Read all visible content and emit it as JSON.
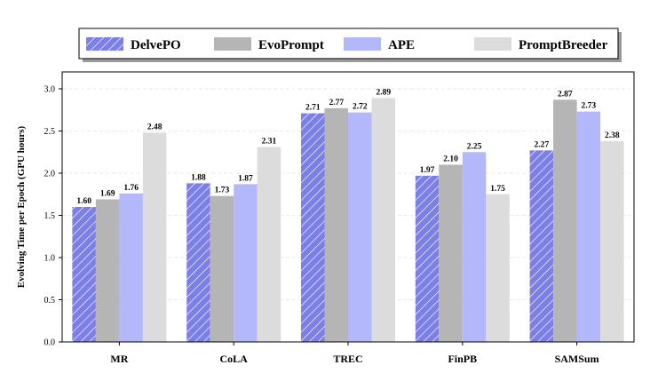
{
  "chart_data": {
    "type": "bar",
    "categories": [
      "MR",
      "CoLA",
      "TREC",
      "FinPB",
      "SAMSum"
    ],
    "series": [
      {
        "name": "DelvePO",
        "values": [
          1.6,
          1.88,
          2.71,
          1.97,
          2.27
        ],
        "color": "#7b7fe6",
        "hatch": true
      },
      {
        "name": "EvoPrompt",
        "values": [
          1.69,
          1.73,
          2.77,
          2.1,
          2.87
        ],
        "color": "#b5b5b5",
        "hatch": false
      },
      {
        "name": "APE",
        "values": [
          1.76,
          1.87,
          2.72,
          2.25,
          2.73
        ],
        "color": "#b3b8fb",
        "hatch": false
      },
      {
        "name": "PromptBreeder",
        "values": [
          2.48,
          2.31,
          2.89,
          1.75,
          2.38
        ],
        "color": "#dcdcdc",
        "hatch": false
      }
    ],
    "value_labels": [
      [
        "1.60",
        "1.88",
        "2.71",
        "1.97",
        "2.27"
      ],
      [
        "1.69",
        "1.73",
        "2.77",
        "2.10",
        "2.87"
      ],
      [
        "1.76",
        "1.87",
        "2.72",
        "2.25",
        "2.73"
      ],
      [
        "2.48",
        "2.31",
        "2.89",
        "1.75",
        "2.38"
      ]
    ],
    "ylabel": "Evolving Time per Epoch (GPU hours)",
    "xlabel": "",
    "ylim": [
      0,
      3.2
    ],
    "yticks": [
      "0.0",
      "0.5",
      "1.0",
      "1.5",
      "2.0",
      "2.5",
      "3.0"
    ],
    "grid": "horizontal dashed",
    "legend_position": "top"
  }
}
